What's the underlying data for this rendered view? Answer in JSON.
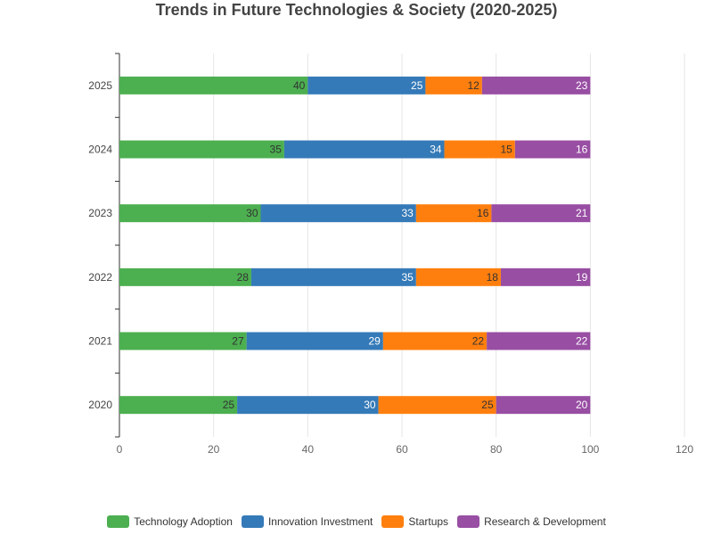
{
  "chart_data": {
    "type": "bar",
    "orientation": "horizontal",
    "stacked": true,
    "title": "Trends in Future Technologies & Society (2020-2025)",
    "categories": [
      "2020",
      "2021",
      "2022",
      "2023",
      "2024",
      "2025"
    ],
    "series": [
      {
        "name": "Technology Adoption",
        "color": "#4caf50",
        "values": [
          25,
          27,
          28,
          30,
          35,
          40
        ]
      },
      {
        "name": "Innovation Investment",
        "color": "#357ab8",
        "values": [
          30,
          29,
          35,
          33,
          34,
          25
        ]
      },
      {
        "name": "Startups",
        "color": "#ff7f0e",
        "values": [
          25,
          22,
          18,
          16,
          15,
          12
        ]
      },
      {
        "name": "Research & Development",
        "color": "#984ea3",
        "values": [
          20,
          22,
          19,
          21,
          16,
          23
        ]
      }
    ],
    "x_ticks": [
      "0",
      "20",
      "40",
      "60",
      "80",
      "100",
      "120"
    ],
    "xlim": [
      0,
      120
    ],
    "xlabel": "",
    "ylabel": "",
    "grid": true,
    "legend_position": "bottom"
  }
}
